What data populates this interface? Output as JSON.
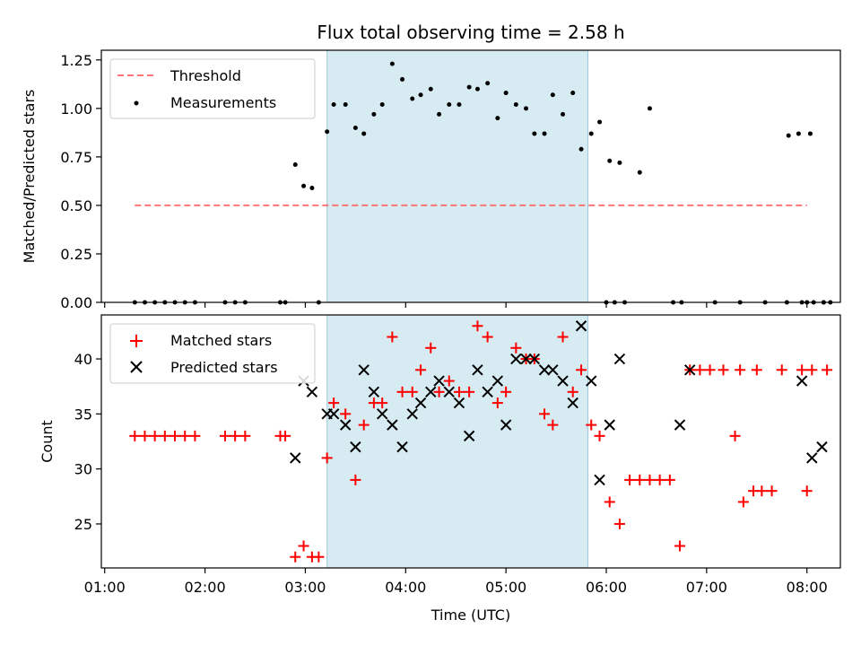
{
  "chart_data": [
    {
      "type": "scatter",
      "title": "Flux total observing time = 2.58 h",
      "xlabel": "",
      "ylabel": "Matched/Predicted stars",
      "ylim": [
        0,
        1.3
      ],
      "xlim": [
        "00:58",
        "08:20"
      ],
      "yticks": [
        "0.00",
        "0.25",
        "0.50",
        "0.75",
        "1.00",
        "1.25"
      ],
      "highlight_span": {
        "start": "03:13",
        "end": "05:49",
        "color": "#add8e6"
      },
      "legend_position": "top-left",
      "legend": {
        "threshold": "Threshold",
        "measurements": "Measurements"
      },
      "threshold": {
        "name": "Threshold",
        "value": 0.5,
        "x_start": "01:18",
        "x_end": "08:00",
        "color": "#ff6666",
        "style": "dashed"
      },
      "series": [
        {
          "name": "Measurements",
          "color": "#000000",
          "marker": "dot",
          "points": [
            [
              "01:18",
              0
            ],
            [
              "01:24",
              0
            ],
            [
              "01:30",
              0
            ],
            [
              "01:36",
              0
            ],
            [
              "01:42",
              0
            ],
            [
              "01:48",
              0
            ],
            [
              "01:54",
              0
            ],
            [
              "02:12",
              0
            ],
            [
              "02:18",
              0
            ],
            [
              "02:24",
              0
            ],
            [
              "02:45",
              0
            ],
            [
              "02:48",
              0
            ],
            [
              "02:54",
              0.71
            ],
            [
              "02:59",
              0.6
            ],
            [
              "03:04",
              0.59
            ],
            [
              "03:08",
              0
            ],
            [
              "03:13",
              0.88
            ],
            [
              "03:17",
              1.02
            ],
            [
              "03:24",
              1.02
            ],
            [
              "03:30",
              0.9
            ],
            [
              "03:35",
              0.87
            ],
            [
              "03:41",
              0.97
            ],
            [
              "03:46",
              1.02
            ],
            [
              "03:52",
              1.23
            ],
            [
              "03:58",
              1.15
            ],
            [
              "04:04",
              1.05
            ],
            [
              "04:09",
              1.07
            ],
            [
              "04:15",
              1.1
            ],
            [
              "04:20",
              0.97
            ],
            [
              "04:26",
              1.02
            ],
            [
              "04:32",
              1.02
            ],
            [
              "04:38",
              1.11
            ],
            [
              "04:43",
              1.1
            ],
            [
              "04:49",
              1.13
            ],
            [
              "04:55",
              0.95
            ],
            [
              "05:00",
              1.08
            ],
            [
              "05:06",
              1.02
            ],
            [
              "05:12",
              1.0
            ],
            [
              "05:17",
              0.87
            ],
            [
              "05:23",
              0.87
            ],
            [
              "05:28",
              1.07
            ],
            [
              "05:34",
              0.97
            ],
            [
              "05:40",
              1.08
            ],
            [
              "05:45",
              0.79
            ],
            [
              "05:51",
              0.87
            ],
            [
              "05:56",
              0.93
            ],
            [
              "06:02",
              0.73
            ],
            [
              "06:08",
              0.72
            ],
            [
              "06:00",
              0
            ],
            [
              "06:05",
              0
            ],
            [
              "06:11",
              0
            ],
            [
              "06:20",
              0.67
            ],
            [
              "06:26",
              1.0
            ],
            [
              "06:40",
              0
            ],
            [
              "06:45",
              0
            ],
            [
              "07:05",
              0
            ],
            [
              "07:20",
              0
            ],
            [
              "07:35",
              0
            ],
            [
              "07:48",
              0
            ],
            [
              "07:57",
              0
            ],
            [
              "08:00",
              0
            ],
            [
              "08:04",
              0
            ],
            [
              "08:10",
              0
            ],
            [
              "08:14",
              0
            ],
            [
              "07:49",
              0.86
            ],
            [
              "07:55",
              0.87
            ],
            [
              "08:02",
              0.87
            ],
            [
              "08:10",
              0
            ]
          ]
        }
      ]
    },
    {
      "type": "scatter",
      "title": "",
      "xlabel": "Time (UTC)",
      "ylabel": "Count",
      "ylim": [
        21,
        44
      ],
      "xlim": [
        "00:58",
        "08:20"
      ],
      "xticks": [
        "01:00",
        "02:00",
        "03:00",
        "04:00",
        "05:00",
        "06:00",
        "07:00",
        "08:00"
      ],
      "yticks": [
        "25",
        "30",
        "35",
        "40"
      ],
      "highlight_span": {
        "start": "03:13",
        "end": "05:49",
        "color": "#add8e6"
      },
      "legend_position": "top-left",
      "legend": {
        "matched": "Matched stars",
        "predicted": "Predicted stars"
      },
      "series": [
        {
          "name": "Matched stars",
          "color": "#ff0000",
          "marker": "plus",
          "points": [
            [
              "01:18",
              33
            ],
            [
              "01:24",
              33
            ],
            [
              "01:30",
              33
            ],
            [
              "01:36",
              33
            ],
            [
              "01:42",
              33
            ],
            [
              "01:48",
              33
            ],
            [
              "01:54",
              33
            ],
            [
              "02:12",
              33
            ],
            [
              "02:18",
              33
            ],
            [
              "02:24",
              33
            ],
            [
              "02:45",
              33
            ],
            [
              "02:48",
              33
            ],
            [
              "02:54",
              22
            ],
            [
              "02:59",
              23
            ],
            [
              "03:04",
              22
            ],
            [
              "03:08",
              22
            ],
            [
              "03:13",
              31
            ],
            [
              "03:17",
              36
            ],
            [
              "03:24",
              35
            ],
            [
              "03:30",
              29
            ],
            [
              "03:35",
              34
            ],
            [
              "03:41",
              36
            ],
            [
              "03:46",
              36
            ],
            [
              "03:52",
              42
            ],
            [
              "03:58",
              37
            ],
            [
              "04:04",
              37
            ],
            [
              "04:09",
              39
            ],
            [
              "04:15",
              41
            ],
            [
              "04:20",
              37
            ],
            [
              "04:26",
              38
            ],
            [
              "04:32",
              37
            ],
            [
              "04:38",
              37
            ],
            [
              "04:43",
              43
            ],
            [
              "04:49",
              42
            ],
            [
              "04:55",
              36
            ],
            [
              "05:00",
              37
            ],
            [
              "05:06",
              41
            ],
            [
              "05:12",
              40
            ],
            [
              "05:17",
              40
            ],
            [
              "05:23",
              35
            ],
            [
              "05:28",
              34
            ],
            [
              "05:34",
              42
            ],
            [
              "05:40",
              37
            ],
            [
              "05:45",
              39
            ],
            [
              "05:51",
              34
            ],
            [
              "05:56",
              33
            ],
            [
              "06:02",
              27
            ],
            [
              "06:08",
              25
            ],
            [
              "06:14",
              29
            ],
            [
              "06:20",
              29
            ],
            [
              "06:26",
              29
            ],
            [
              "06:32",
              29
            ],
            [
              "06:38",
              29
            ],
            [
              "06:44",
              23
            ],
            [
              "06:50",
              39
            ],
            [
              "06:56",
              39
            ],
            [
              "07:02",
              39
            ],
            [
              "07:10",
              39
            ],
            [
              "07:20",
              39
            ],
            [
              "07:30",
              39
            ],
            [
              "07:45",
              39
            ],
            [
              "07:57",
              39
            ],
            [
              "08:03",
              39
            ],
            [
              "08:12",
              39
            ],
            [
              "07:17",
              33
            ],
            [
              "07:22",
              27
            ],
            [
              "07:28",
              28
            ],
            [
              "07:33",
              28
            ],
            [
              "07:39",
              28
            ],
            [
              "08:00",
              28
            ]
          ]
        },
        {
          "name": "Predicted stars",
          "color": "#000000",
          "marker": "x",
          "points": [
            [
              "02:54",
              31
            ],
            [
              "02:59",
              38
            ],
            [
              "03:04",
              37
            ],
            [
              "03:13",
              35
            ],
            [
              "03:17",
              35
            ],
            [
              "03:24",
              34
            ],
            [
              "03:30",
              32
            ],
            [
              "03:35",
              39
            ],
            [
              "03:41",
              37
            ],
            [
              "03:46",
              35
            ],
            [
              "03:52",
              34
            ],
            [
              "03:58",
              32
            ],
            [
              "04:04",
              35
            ],
            [
              "04:09",
              36
            ],
            [
              "04:15",
              37
            ],
            [
              "04:20",
              38
            ],
            [
              "04:26",
              37
            ],
            [
              "04:32",
              36
            ],
            [
              "04:38",
              33
            ],
            [
              "04:43",
              39
            ],
            [
              "04:49",
              37
            ],
            [
              "04:55",
              38
            ],
            [
              "05:00",
              34
            ],
            [
              "05:06",
              40
            ],
            [
              "05:12",
              40
            ],
            [
              "05:17",
              40
            ],
            [
              "05:23",
              39
            ],
            [
              "05:28",
              39
            ],
            [
              "05:34",
              38
            ],
            [
              "05:40",
              36
            ],
            [
              "05:45",
              43
            ],
            [
              "05:51",
              38
            ],
            [
              "05:56",
              29
            ],
            [
              "06:02",
              34
            ],
            [
              "06:08",
              40
            ],
            [
              "06:44",
              34
            ],
            [
              "06:50",
              39
            ],
            [
              "07:57",
              38
            ],
            [
              "08:03",
              31
            ],
            [
              "08:09",
              32
            ]
          ]
        }
      ]
    }
  ]
}
